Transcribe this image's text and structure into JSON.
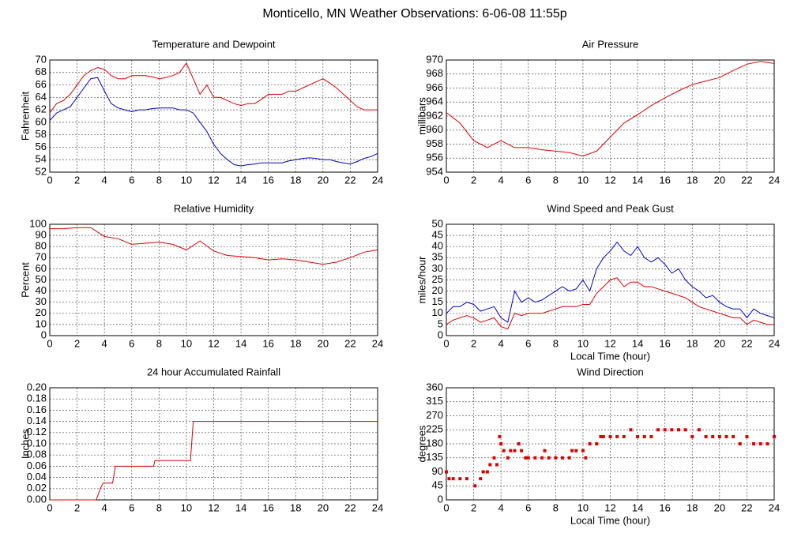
{
  "title": "Monticello, MN Weather Observations: 6-06-08 11:55p",
  "chart_data": [
    {
      "type": "line",
      "title": "Temperature and Dewpoint",
      "ylabel": "Fahrenheit",
      "x": [
        0,
        0.5,
        1,
        1.5,
        2,
        2.5,
        3,
        3.5,
        4,
        4.5,
        5,
        5.5,
        6,
        6.5,
        7,
        7.5,
        8,
        8.5,
        9,
        9.5,
        10,
        10.5,
        11,
        11.5,
        12,
        12.5,
        13,
        13.5,
        14,
        14.5,
        15,
        15.5,
        16,
        16.5,
        17,
        17.5,
        18,
        18.5,
        19,
        19.5,
        20,
        20.5,
        21,
        21.5,
        22,
        22.5,
        23,
        23.5,
        24
      ],
      "series": [
        {
          "color": "#dd0000",
          "values": [
            61.5,
            63,
            63.5,
            64.5,
            66,
            67.5,
            68.3,
            68.8,
            68.5,
            67.5,
            67,
            67,
            67.5,
            67.5,
            67.5,
            67.3,
            67,
            67.2,
            67.5,
            68,
            69.5,
            67,
            64.5,
            66,
            64,
            64,
            63.5,
            63,
            62.7,
            63,
            63,
            63.7,
            64.5,
            64.5,
            64.5,
            65,
            65,
            65.5,
            66,
            66.5,
            67,
            66.3,
            65.5,
            64.5,
            63.5,
            62.5,
            62,
            62,
            62
          ]
        },
        {
          "color": "#0000cc",
          "values": [
            60.3,
            61.5,
            62,
            62.5,
            64,
            65.5,
            67,
            67.2,
            65,
            63,
            62.3,
            62,
            61.7,
            62,
            62,
            62.2,
            62.3,
            62.3,
            62.3,
            62,
            62,
            61.5,
            60,
            58.5,
            56.5,
            55,
            54,
            53.2,
            53,
            53.2,
            53.3,
            53.5,
            53.5,
            53.5,
            53.5,
            53.8,
            54,
            54.2,
            54.3,
            54.2,
            54,
            54,
            53.7,
            53.5,
            53.3,
            53.7,
            54.2,
            54.5,
            55
          ]
        }
      ],
      "xlim": [
        0,
        24
      ],
      "xticks": [
        0,
        2,
        4,
        6,
        8,
        10,
        12,
        14,
        16,
        18,
        20,
        22,
        24
      ],
      "ylim": [
        52,
        70
      ],
      "yticks": [
        52,
        54,
        56,
        58,
        60,
        62,
        64,
        66,
        68,
        70
      ],
      "grid": true
    },
    {
      "type": "line",
      "title": "Air Pressure",
      "ylabel": "millibars",
      "x": [
        0,
        1,
        2,
        3,
        4,
        5,
        6,
        7,
        8,
        9,
        10,
        11,
        12,
        13,
        14,
        15,
        16,
        17,
        18,
        19,
        20,
        21,
        22,
        23,
        24
      ],
      "series": [
        {
          "color": "#dd0000",
          "values": [
            962.5,
            961,
            958.5,
            957.5,
            958.5,
            957.5,
            957.5,
            957.2,
            957,
            956.8,
            956.3,
            957,
            959,
            961,
            962.2,
            963.5,
            964.6,
            965.6,
            966.5,
            967,
            967.5,
            968.5,
            969.4,
            969.8,
            969.5
          ]
        }
      ],
      "xlim": [
        0,
        24
      ],
      "xticks": [
        0,
        2,
        4,
        6,
        8,
        10,
        12,
        14,
        16,
        18,
        20,
        22,
        24
      ],
      "ylim": [
        954,
        970
      ],
      "yticks": [
        954,
        956,
        958,
        960,
        962,
        964,
        966,
        968,
        970
      ],
      "grid": true
    },
    {
      "type": "line",
      "title": "Relative Humidity",
      "ylabel": "Percent",
      "x": [
        0,
        1,
        2,
        3,
        4,
        5,
        6,
        7,
        8,
        9,
        10,
        11,
        12,
        13,
        14,
        15,
        16,
        17,
        18,
        19,
        20,
        21,
        22,
        23,
        24
      ],
      "series": [
        {
          "color": "#dd0000",
          "values": [
            96,
            96,
            97,
            97,
            89,
            87,
            82,
            83,
            84,
            82,
            77,
            85,
            76,
            72,
            71,
            70,
            68,
            69,
            68,
            66,
            64,
            66,
            70,
            75,
            77
          ]
        }
      ],
      "xlim": [
        0,
        24
      ],
      "xticks": [
        0,
        2,
        4,
        6,
        8,
        10,
        12,
        14,
        16,
        18,
        20,
        22,
        24
      ],
      "ylim": [
        0,
        100
      ],
      "yticks": [
        0,
        10,
        20,
        30,
        40,
        50,
        60,
        70,
        80,
        90,
        100
      ],
      "grid": true
    },
    {
      "type": "line",
      "title": "Wind Speed and Peak Gust",
      "ylabel": "miles/hour",
      "xlabel": "Local Time (hour)",
      "x": [
        0,
        0.5,
        1,
        1.5,
        2,
        2.5,
        3,
        3.5,
        4,
        4.5,
        5,
        5.5,
        6,
        6.5,
        7,
        7.5,
        8,
        8.5,
        9,
        9.5,
        10,
        10.5,
        11,
        11.5,
        12,
        12.5,
        13,
        13.5,
        14,
        14.5,
        15,
        15.5,
        16,
        16.5,
        17,
        17.5,
        18,
        18.5,
        19,
        19.5,
        20,
        20.5,
        21,
        21.5,
        22,
        22.5,
        23,
        23.5,
        24
      ],
      "series": [
        {
          "color": "#0000cc",
          "values": [
            10,
            13,
            13,
            15,
            14,
            11,
            12,
            13,
            8,
            6,
            20,
            15,
            17,
            15,
            16,
            18,
            20,
            22,
            20,
            21,
            25,
            20,
            30,
            35,
            38,
            42,
            38,
            36,
            40,
            35,
            33,
            35,
            32,
            28,
            30,
            25,
            22,
            20,
            17,
            18,
            15,
            13,
            12,
            12,
            8,
            12,
            10,
            9,
            8
          ]
        },
        {
          "color": "#dd0000",
          "values": [
            5,
            7,
            8,
            9,
            8,
            6,
            7,
            8,
            4,
            3,
            10,
            9,
            10,
            10,
            10,
            11,
            12,
            13,
            13,
            13,
            14,
            14,
            19,
            22,
            25,
            26,
            22,
            24,
            24,
            22,
            22,
            21,
            20,
            19,
            18,
            17,
            15,
            13,
            12,
            11,
            10,
            9,
            8,
            8,
            5,
            7,
            6,
            5,
            5
          ]
        }
      ],
      "xlim": [
        0,
        24
      ],
      "xticks": [
        0,
        2,
        4,
        6,
        8,
        10,
        12,
        14,
        16,
        18,
        20,
        22,
        24
      ],
      "ylim": [
        0,
        50
      ],
      "yticks": [
        0,
        5,
        10,
        15,
        20,
        25,
        30,
        35,
        40,
        45,
        50
      ],
      "grid": true
    },
    {
      "type": "line",
      "title": "24 hour Accumulated Rainfall",
      "ylabel": "Inches",
      "x": [
        0,
        3.4,
        3.7,
        3.9,
        4.6,
        4.8,
        7.6,
        7.7,
        10.3,
        10.5,
        24
      ],
      "series": [
        {
          "color": "#dd0000",
          "values": [
            0,
            0,
            0.02,
            0.03,
            0.03,
            0.06,
            0.06,
            0.07,
            0.07,
            0.14,
            0.14
          ]
        }
      ],
      "xlim": [
        0,
        24
      ],
      "xticks": [
        0,
        2,
        4,
        6,
        8,
        10,
        12,
        14,
        16,
        18,
        20,
        22,
        24
      ],
      "ylim": [
        0,
        0.2
      ],
      "yticks": [
        {
          "value": 0,
          "label": "0.00"
        },
        0.02,
        0.04,
        0.06,
        0.08,
        {
          "value": 0.1,
          "label": "0.10"
        },
        0.12,
        0.14,
        0.16,
        0.18,
        {
          "value": 0.2,
          "label": "0.20"
        }
      ],
      "grid": true
    },
    {
      "type": "scatter",
      "title": "Wind Direction",
      "ylabel": "degrees",
      "xlabel": "Local Time (hour)",
      "x": [
        0,
        0.2,
        0.5,
        1,
        1.5,
        2.1,
        2.5,
        2.7,
        3,
        3.2,
        3.5,
        3.7,
        3.9,
        4,
        4.2,
        4.5,
        4.7,
        5,
        5.3,
        5.5,
        5.8,
        6,
        6.5,
        7,
        7.2,
        7.5,
        8,
        8.5,
        9,
        9.2,
        9.5,
        10,
        10.2,
        10.5,
        11,
        11.3,
        11.5,
        12,
        12.5,
        13,
        13.5,
        14,
        14.5,
        15,
        15.5,
        16,
        16.5,
        17,
        17.5,
        18,
        18.5,
        19,
        19.5,
        20,
        20.5,
        21,
        21.5,
        22,
        22.5,
        23,
        23.5,
        24
      ],
      "series": [
        {
          "color": "#dd0000",
          "values": [
            90,
            68,
            68,
            68,
            68,
            45,
            68,
            90,
            90,
            113,
            135,
            113,
            203,
            180,
            158,
            135,
            158,
            158,
            180,
            158,
            135,
            135,
            135,
            135,
            158,
            135,
            135,
            135,
            135,
            158,
            158,
            158,
            135,
            180,
            180,
            203,
            203,
            203,
            203,
            203,
            225,
            203,
            203,
            203,
            225,
            225,
            225,
            225,
            225,
            203,
            225,
            203,
            203,
            203,
            203,
            203,
            180,
            203,
            180,
            180,
            180,
            203
          ]
        }
      ],
      "xlim": [
        0,
        24
      ],
      "xticks": [
        0,
        2,
        4,
        6,
        8,
        10,
        12,
        14,
        16,
        18,
        20,
        22,
        24
      ],
      "ylim": [
        0,
        360
      ],
      "yticks": [
        0,
        45,
        90,
        135,
        180,
        225,
        270,
        315,
        360
      ],
      "grid": true
    }
  ]
}
